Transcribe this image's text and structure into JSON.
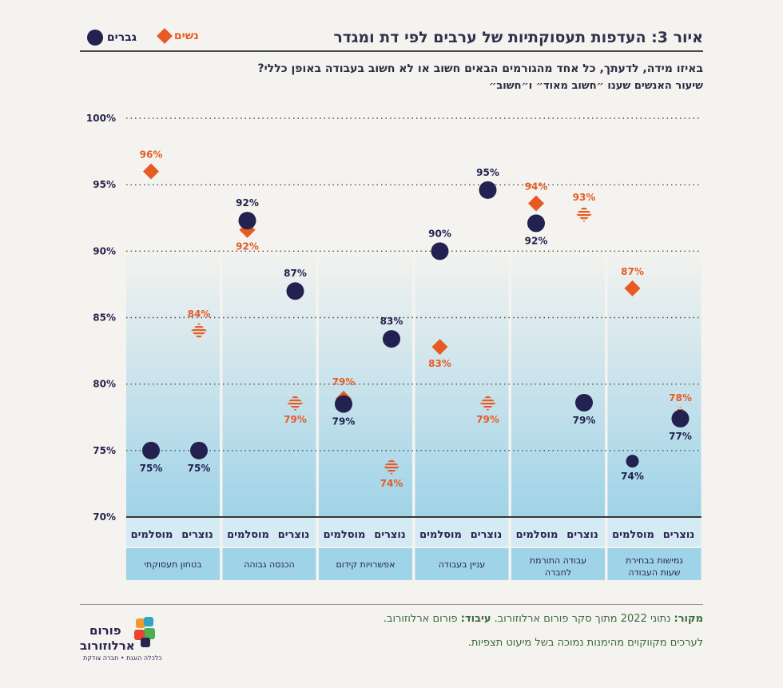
{
  "title": "איור 3: העדפות תעסוקתיות של ערבים לפי דת ומגדר",
  "legend": {
    "women": "נשים",
    "men": "גברים"
  },
  "question": "באיזו מידה, לדעתך, כל אחד מהגורמים הבאים חשוב או לא חשוב בעבודה באופן כללי?",
  "subquestion": "שיעור האנשים שענו ״חשוב מאוד״ ו״חשוב״",
  "colors": {
    "men": "#23214f",
    "women": "#e85a24",
    "band": "#9fd3e8"
  },
  "chart_data": {
    "type": "scatter",
    "ylim": [
      70,
      100
    ],
    "y_ticks": [
      "100%",
      "95%",
      "90%",
      "85%",
      "80%",
      "75%",
      "70%"
    ],
    "y_tick_values": [
      100,
      95,
      90,
      85,
      80,
      75,
      70
    ],
    "groups": [
      {
        "label": "בטחון תעסוקתי",
        "label_lines": [
          "בטחון תעסוקתי"
        ],
        "subgroups": [
          {
            "label": "מוסלמים",
            "men": 75,
            "men_label": "75%",
            "women": 96,
            "women_label": "96%",
            "women_hatched": false
          },
          {
            "label": "נוצרים",
            "men": 75,
            "men_label": "75%",
            "women": 84,
            "women_label": "84%",
            "women_hatched": true
          }
        ]
      },
      {
        "label": "הכנסה גבוהה",
        "label_lines": [
          "הכנסה גבוהה"
        ],
        "subgroups": [
          {
            "label": "מוסלמים",
            "men": 92.3,
            "men_label": "92%",
            "women": 91.6,
            "women_label": "92%",
            "women_hatched": false
          },
          {
            "label": "נוצרים",
            "men": 87,
            "men_label": "87%",
            "women": 78.6,
            "women_label": "79%",
            "women_hatched": true
          }
        ]
      },
      {
        "label": "אפשרויות קידום",
        "label_lines": [
          "אפשרויות קידום"
        ],
        "subgroups": [
          {
            "label": "מוסלמים",
            "men": 78.5,
            "men_label": "79%",
            "women": 78.9,
            "women_label": "79%",
            "women_hatched": false
          },
          {
            "label": "נוצרים",
            "men": 83.4,
            "men_label": "83%",
            "women": 73.8,
            "women_label": "74%",
            "women_hatched": true
          }
        ]
      },
      {
        "label": "עניין בעבודה",
        "label_lines": [
          "עניין בעבודה"
        ],
        "subgroups": [
          {
            "label": "מוסלמים",
            "men": 90,
            "men_label": "90%",
            "women": 82.8,
            "women_label": "83%",
            "women_hatched": false
          },
          {
            "label": "נוצרים",
            "men": 94.6,
            "men_label": "95%",
            "women": 78.6,
            "women_label": "79%",
            "women_hatched": true
          }
        ]
      },
      {
        "label": "עבודה התורמת לחברה",
        "label_lines": [
          "עבודה התורמת",
          "לחברה"
        ],
        "subgroups": [
          {
            "label": "מוסלמים",
            "men": 92.1,
            "men_label": "92%",
            "women": 93.6,
            "women_label": "94%",
            "women_hatched": false
          },
          {
            "label": "נוצרים",
            "men": 78.6,
            "men_label": "79%",
            "women": 92.8,
            "women_label": "93%",
            "women_hatched": true
          }
        ]
      },
      {
        "label": "גמישות בבחירת שעות העבודה",
        "label_lines": [
          "גמישות בבחירת",
          "שעות העבודה"
        ],
        "subgroups": [
          {
            "label": "מוסלמים",
            "men": 74.2,
            "men_label": "74%",
            "women": 87.2,
            "women_label": "87%",
            "women_hatched": false,
            "men_small": true
          },
          {
            "label": "נוצרים",
            "men": 77.4,
            "men_label": "77%",
            "women": 77.7,
            "women_label": "78%",
            "women_hatched": true
          }
        ]
      }
    ]
  },
  "footer": {
    "source_label": "מקור:",
    "source_text": " נתוני 2022 מתוך סקר פורום ארלוזורוב. ",
    "processing_label": "עיבוד:",
    "processing_text": " פורום ארלוזורוב.",
    "note": "לערכים מקווקוים מהימנות נמוכה בשל מיעוט תצפיות."
  },
  "logo": {
    "line1": "פורום",
    "line2": "ארלוזורוב",
    "tagline": "כלכלה הוגנת • חברה צודקת"
  }
}
